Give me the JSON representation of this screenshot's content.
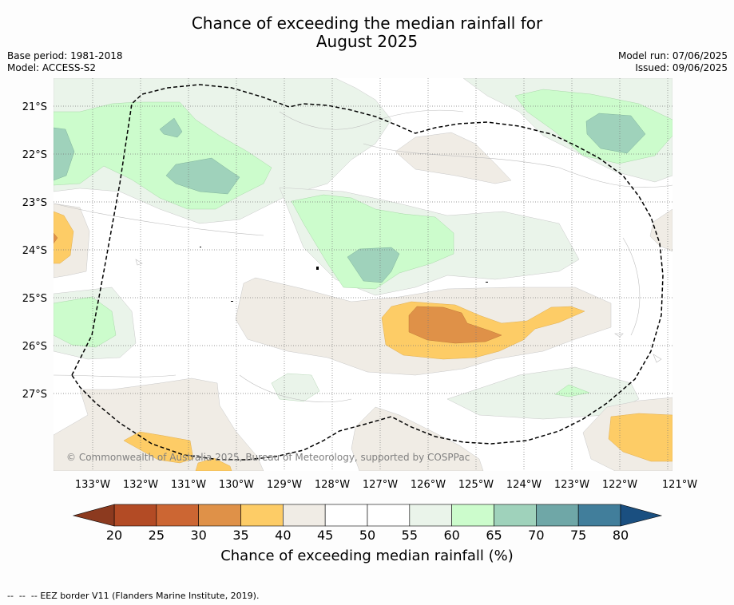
{
  "title_line1": "Chance of exceeding the median rainfall for",
  "title_line2": "August 2025",
  "base_period": "Base period: 1981-2018",
  "model": "Model: ACCESS-S2",
  "model_run": "Model run: 07/06/2025",
  "issued": "Issued: 09/06/2025",
  "lat_labels": [
    "21°S",
    "22°S",
    "23°S",
    "24°S",
    "25°S",
    "26°S",
    "27°S"
  ],
  "lon_labels": [
    "133°W",
    "132°W",
    "131°W",
    "130°W",
    "129°W",
    "128°W",
    "127°W",
    "126°W",
    "125°W",
    "124°W",
    "123°W",
    "122°W",
    "121°W"
  ],
  "copyright": "© Commonwealth of Australia 2025, Bureau of Meteorology, supported by COSPPac",
  "colorbar": {
    "ticks": [
      "20",
      "25",
      "30",
      "35",
      "40",
      "45",
      "50",
      "55",
      "60",
      "65",
      "70",
      "75",
      "80"
    ],
    "label": "Chance of exceeding median rainfall (%)",
    "colors": [
      "#b34b25",
      "#cc6633",
      "#df9148",
      "#fdcc66",
      "#f0ece5",
      "#ffffff",
      "#ffffff",
      "#eaf4ea",
      "#ccfccc",
      "#9fd2bb",
      "#6fa7a7",
      "#417e9b"
    ],
    "under_color": "#8c3a1f",
    "over_color": "#1a4f80"
  },
  "footnote_marker": "--  --  --",
  "footnote_text": "EEZ border V11 (Flanders Marine Institute, 2019)."
}
